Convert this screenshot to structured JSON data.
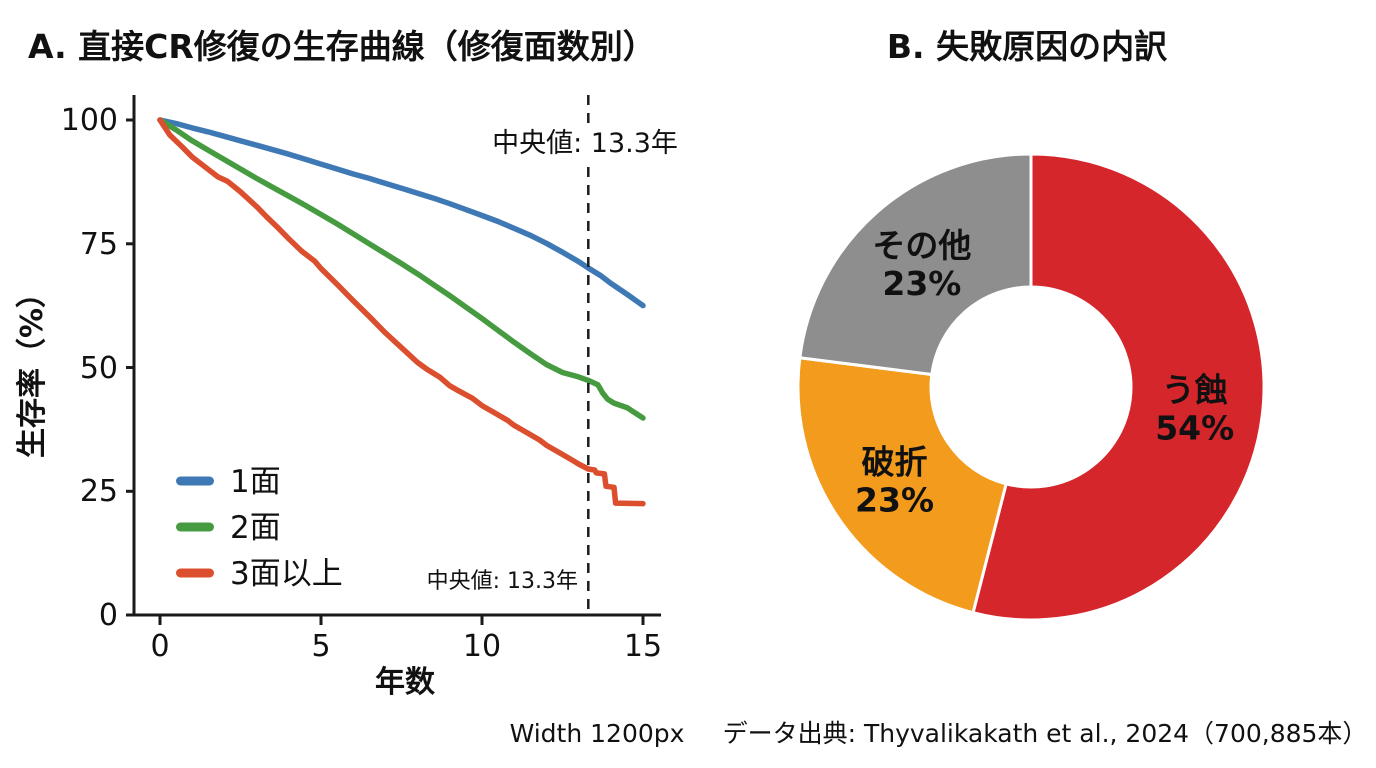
{
  "panel_a": {
    "title": "A. 直接CR修復の生存曲線（修復面数別）",
    "x_axis_title": "年数",
    "y_axis_title": "生存率（%）",
    "x_tick_labels": [
      "0",
      "5",
      "10",
      "15"
    ],
    "y_tick_labels": [
      "100",
      "75",
      "50",
      "25",
      "0"
    ]
  },
  "panel_b": {
    "title": "B. 失敗原因の内訳"
  },
  "footer": {
    "left_note": "Width 1200px",
    "source": "データ出典: Thyvalikakath et al., 2024（700,885本）"
  },
  "chart_data": [
    {
      "type": "line",
      "title": "A. 直接CR修復の生存曲線（修復面数別）",
      "xlabel": "年数",
      "ylabel": "生存率（%）",
      "xlim": [
        0,
        15
      ],
      "ylim": [
        0,
        100
      ],
      "x_ticks": [
        0,
        5,
        10,
        15
      ],
      "y_ticks": [
        0,
        25,
        50,
        75,
        100
      ],
      "grid": false,
      "legend_position": "lower-left-inside",
      "median_year": 13.3,
      "median_annotation": "中央値: 13.3年",
      "series": [
        {
          "name": "1面",
          "color": "#3E79B6",
          "points": [
            [
              0,
              100
            ],
            [
              0.5,
              99.3
            ],
            [
              1,
              98.4
            ],
            [
              1.5,
              97.6
            ],
            [
              2,
              96.7
            ],
            [
              2.5,
              95.8
            ],
            [
              3,
              94.9
            ],
            [
              3.5,
              94
            ],
            [
              4,
              93.1
            ],
            [
              4.5,
              92.1
            ],
            [
              5,
              91.1
            ],
            [
              5.5,
              90.1
            ],
            [
              6,
              89.1
            ],
            [
              6.5,
              88.2
            ],
            [
              7,
              87.2
            ],
            [
              7.5,
              86.2
            ],
            [
              8,
              85.2
            ],
            [
              8.5,
              84.2
            ],
            [
              9,
              83.1
            ],
            [
              9.5,
              81.9
            ],
            [
              10,
              80.7
            ],
            [
              10.5,
              79.5
            ],
            [
              11,
              78.1
            ],
            [
              11.5,
              76.7
            ],
            [
              12,
              75.1
            ],
            [
              12.5,
              73.3
            ],
            [
              13,
              71.4
            ],
            [
              13.3,
              70.1
            ],
            [
              13.7,
              68.5
            ],
            [
              14,
              67
            ],
            [
              14.5,
              64.8
            ],
            [
              15,
              62.5
            ]
          ]
        },
        {
          "name": "2面",
          "color": "#469B41",
          "points": [
            [
              0,
              100
            ],
            [
              0.5,
              98
            ],
            [
              1,
              95.8
            ],
            [
              1.5,
              93.9
            ],
            [
              2,
              92
            ],
            [
              2.5,
              90.1
            ],
            [
              3,
              88.2
            ],
            [
              3.5,
              86.4
            ],
            [
              4,
              84.6
            ],
            [
              4.5,
              82.8
            ],
            [
              5,
              80.9
            ],
            [
              5.5,
              79
            ],
            [
              6,
              77
            ],
            [
              6.5,
              75
            ],
            [
              7,
              73
            ],
            [
              7.5,
              71
            ],
            [
              8,
              68.9
            ],
            [
              8.5,
              66.7
            ],
            [
              9,
              64.5
            ],
            [
              9.5,
              62.2
            ],
            [
              10,
              59.9
            ],
            [
              10.5,
              57.5
            ],
            [
              11,
              55.1
            ],
            [
              11.5,
              52.8
            ],
            [
              12,
              50.6
            ],
            [
              12.5,
              49
            ],
            [
              13,
              48.1
            ],
            [
              13.3,
              47.4
            ],
            [
              13.6,
              46.5
            ],
            [
              13.75,
              44.8
            ],
            [
              13.9,
              43.6
            ],
            [
              14.1,
              42.8
            ],
            [
              14.5,
              41.9
            ],
            [
              15,
              39.8
            ]
          ]
        },
        {
          "name": "3面以上",
          "color": "#DC4F2E",
          "points": [
            [
              0,
              100
            ],
            [
              0.3,
              97
            ],
            [
              0.7,
              94.5
            ],
            [
              1,
              92.5
            ],
            [
              1.4,
              90.5
            ],
            [
              1.8,
              88.5
            ],
            [
              2.1,
              87.6
            ],
            [
              2.5,
              85.5
            ],
            [
              3,
              82.5
            ],
            [
              3.3,
              80.5
            ],
            [
              3.7,
              78
            ],
            [
              4,
              76
            ],
            [
              4.4,
              73.5
            ],
            [
              4.8,
              71.5
            ],
            [
              5,
              70
            ],
            [
              5.5,
              66.8
            ],
            [
              6,
              63.5
            ],
            [
              6.5,
              60.3
            ],
            [
              7,
              57
            ],
            [
              7.5,
              54
            ],
            [
              8,
              51
            ],
            [
              8.3,
              49.6
            ],
            [
              8.7,
              48
            ],
            [
              9,
              46.3
            ],
            [
              9.3,
              45.2
            ],
            [
              9.7,
              43.8
            ],
            [
              10,
              42.3
            ],
            [
              10.4,
              40.8
            ],
            [
              10.8,
              39.3
            ],
            [
              11,
              38.3
            ],
            [
              11.4,
              36.8
            ],
            [
              11.8,
              35.3
            ],
            [
              12,
              34.3
            ],
            [
              12.4,
              32.8
            ],
            [
              12.8,
              31.3
            ],
            [
              13,
              30.5
            ],
            [
              13.3,
              29.5
            ],
            [
              13.5,
              29.3
            ],
            [
              13.55,
              28.7
            ],
            [
              13.8,
              28.5
            ],
            [
              13.85,
              26
            ],
            [
              14.1,
              25.8
            ],
            [
              14.15,
              22.6
            ],
            [
              15,
              22.5
            ]
          ]
        }
      ]
    },
    {
      "type": "pie",
      "subtype": "donut",
      "title": "B. 失敗原因の内訳",
      "label_color": "#ffffff",
      "slices": [
        {
          "label": "う蝕",
          "value": 54,
          "color": "#D5262C"
        },
        {
          "label": "破折",
          "value": 23,
          "color": "#F29B1D"
        },
        {
          "label": "その他",
          "value": 23,
          "color": "#8E8E8E"
        }
      ]
    }
  ]
}
